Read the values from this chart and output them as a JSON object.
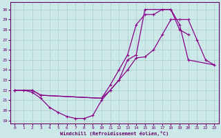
{
  "bg_color": "#cce8e8",
  "grid_color": "#aacccc",
  "line_color": "#880088",
  "xlabel": "Windchill (Refroidissement éolien,°C)",
  "xlim": [
    -0.5,
    23.5
  ],
  "ylim": [
    18.7,
    30.7
  ],
  "xticks": [
    0,
    1,
    2,
    3,
    4,
    5,
    6,
    7,
    8,
    9,
    10,
    11,
    12,
    13,
    14,
    15,
    16,
    17,
    18,
    19,
    20,
    21,
    22,
    23
  ],
  "yticks": [
    19,
    20,
    21,
    22,
    23,
    24,
    25,
    26,
    27,
    28,
    29,
    30
  ],
  "curve1": {
    "x": [
      0,
      1,
      2,
      3,
      4,
      5,
      6,
      7,
      8,
      9,
      10,
      11,
      12,
      13,
      14,
      15,
      16,
      17,
      18,
      19,
      20,
      21,
      22,
      23
    ],
    "y": [
      22,
      22,
      21.8,
      21.2,
      20.3,
      19.8,
      19.4,
      19.2,
      19.2,
      19.5,
      21,
      22,
      23,
      24,
      25.2,
      25.3,
      26,
      27.5,
      29,
      29,
      29,
      27,
      25,
      24.5
    ]
  },
  "curve2": {
    "x": [
      0,
      2,
      3,
      10,
      11,
      12,
      13,
      14,
      15,
      18,
      19,
      20,
      21,
      23
    ],
    "y": [
      22,
      22,
      21.5,
      21.2,
      22,
      23,
      25,
      25.5,
      30,
      30,
      28.5,
      25,
      null,
      24.5
    ]
  },
  "curve3": {
    "x": [
      0,
      2,
      3,
      10,
      11,
      12,
      13,
      14,
      15,
      16,
      17,
      18,
      19,
      20,
      21,
      22,
      23
    ],
    "y": [
      22,
      22,
      21.5,
      21.2,
      22.5,
      24,
      25.5,
      28.5,
      29.5,
      29.5,
      30,
      30,
      28,
      27.5,
      null,
      null,
      null
    ]
  }
}
